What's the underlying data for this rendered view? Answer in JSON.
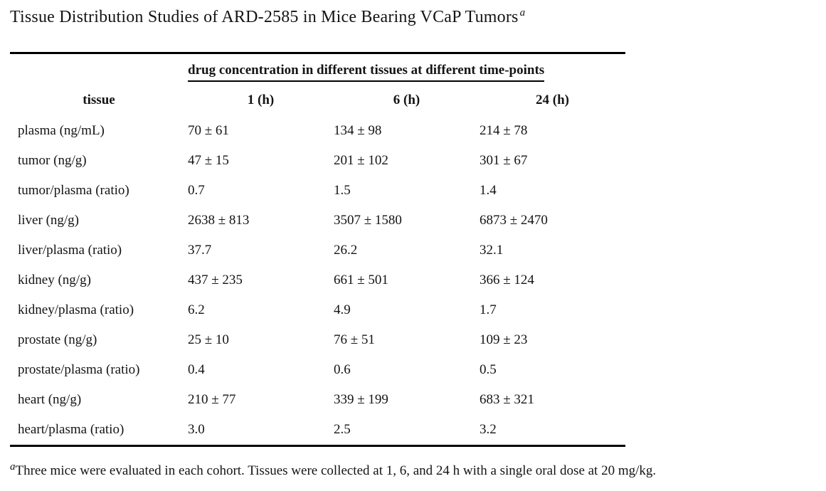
{
  "title": {
    "text": "Tissue Distribution Studies of ARD-2585 in Mice Bearing VCaP Tumors",
    "superscript": "a"
  },
  "table": {
    "span_header": "drug concentration in different tissues at different time-points",
    "columns": [
      "tissue",
      "1 (h)",
      "6 (h)",
      "24 (h)"
    ],
    "rows": [
      {
        "tissue": "plasma (ng/mL)",
        "values": [
          "70 ± 61",
          "134 ± 98",
          "214 ± 78"
        ]
      },
      {
        "tissue": "tumor (ng/g)",
        "values": [
          "47 ± 15",
          "201 ± 102",
          "301 ± 67"
        ]
      },
      {
        "tissue": "tumor/plasma (ratio)",
        "values": [
          "0.7",
          "1.5",
          "1.4"
        ]
      },
      {
        "tissue": "liver (ng/g)",
        "values": [
          "2638 ± 813",
          "3507 ± 1580",
          "6873 ± 2470"
        ]
      },
      {
        "tissue": "liver/plasma (ratio)",
        "values": [
          "37.7",
          "26.2",
          "32.1"
        ]
      },
      {
        "tissue": "kidney (ng/g)",
        "values": [
          "437 ± 235",
          "661 ± 501",
          "366 ± 124"
        ]
      },
      {
        "tissue": "kidney/plasma (ratio)",
        "values": [
          "6.2",
          "4.9",
          "1.7"
        ]
      },
      {
        "tissue": "prostate (ng/g)",
        "values": [
          "25 ± 10",
          "76 ± 51",
          "109 ± 23"
        ]
      },
      {
        "tissue": "prostate/plasma (ratio)",
        "values": [
          "0.4",
          "0.6",
          "0.5"
        ]
      },
      {
        "tissue": "heart (ng/g)",
        "values": [
          "210 ± 77",
          "339 ± 199",
          "683 ± 321"
        ]
      },
      {
        "tissue": "heart/plasma (ratio)",
        "values": [
          "3.0",
          "2.5",
          "3.2"
        ]
      }
    ]
  },
  "footnote": {
    "marker": "a",
    "text": "Three mice were evaluated in each cohort. Tissues were collected at 1, 6, and 24 h with a single oral dose at 20 mg/kg."
  },
  "colors": {
    "text": "#141414",
    "rule": "#000000",
    "background": "#ffffff"
  }
}
